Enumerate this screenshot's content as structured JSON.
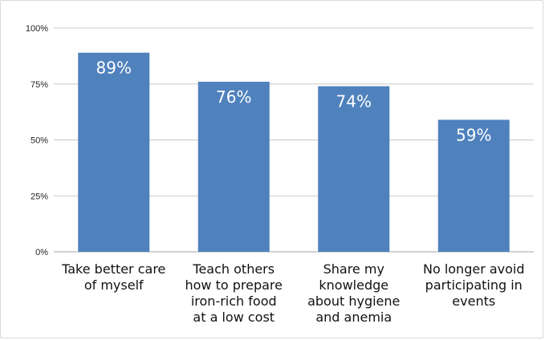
{
  "chart_data": {
    "type": "bar",
    "categories": [
      [
        "Take better care",
        "of myself"
      ],
      [
        "Teach others",
        "how to prepare",
        "iron-rich food",
        "at a low cost"
      ],
      [
        "Share my",
        "knowledge",
        "about hygiene",
        "and anemia"
      ],
      [
        "No longer avoid",
        "participating in",
        "events"
      ]
    ],
    "values": [
      89,
      76,
      74,
      59
    ],
    "data_labels": [
      "89%",
      "76%",
      "74%",
      "59%"
    ],
    "y_ticks": [
      "0%",
      "25%",
      "50%",
      "75%",
      "100%"
    ],
    "y_tick_values": [
      0,
      25,
      50,
      75,
      100
    ],
    "ylim": [
      0,
      100
    ],
    "grid": true,
    "bar_color": "#4f81bd",
    "grid_color": "#c8c8c8",
    "axis_color": "#a6a6a6"
  }
}
